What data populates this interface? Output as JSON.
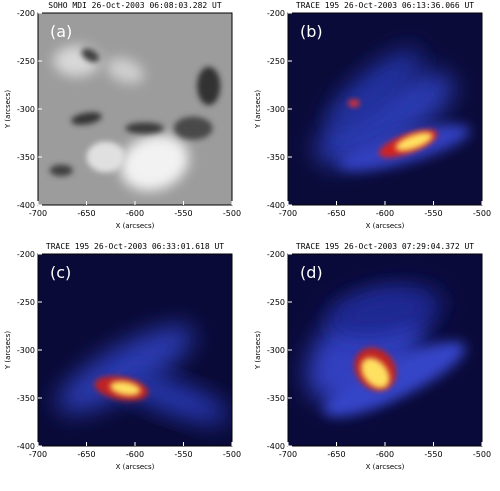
{
  "chart_data": [
    {
      "type": "image",
      "title": "SOHO MDI 26-Oct-2003 06:08:03.282 UT",
      "panel_label": "(a)",
      "xlabel": "X (arcsecs)",
      "ylabel": "Y (arcsecs)",
      "xlim": [
        -700,
        -500
      ],
      "ylim": [
        -400,
        -200
      ],
      "xticks": [
        -700,
        -650,
        -600,
        -550,
        -500
      ],
      "yticks": [
        -400,
        -350,
        -300,
        -250,
        -200
      ]
    },
    {
      "type": "image",
      "title": "TRACE 195 26-Oct-2003 06:13:36.066 UT",
      "panel_label": "(b)",
      "xlabel": "X (arcsecs)",
      "ylabel": "Y (arcsecs)",
      "xlim": [
        -700,
        -500
      ],
      "ylim": [
        -400,
        -200
      ],
      "xticks": [
        -700,
        -650,
        -600,
        -550,
        -500
      ],
      "yticks": [
        -400,
        -350,
        -300,
        -250,
        -200
      ]
    },
    {
      "type": "image",
      "title": "TRACE 195 26-Oct-2003 06:33:01.618 UT",
      "panel_label": "(c)",
      "xlabel": "X (arcsecs)",
      "ylabel": "Y (arcsecs)",
      "xlim": [
        -700,
        -500
      ],
      "ylim": [
        -400,
        -200
      ],
      "xticks": [
        -700,
        -650,
        -600,
        -550,
        -500
      ],
      "yticks": [
        -400,
        -350,
        -300,
        -250,
        -200
      ]
    },
    {
      "type": "image",
      "title": "TRACE 195 26-Oct-2003 07:29:04.372 UT",
      "panel_label": "(d)",
      "xlabel": "X (arcsecs)",
      "ylabel": "Y (arcsecs)",
      "xlim": [
        -700,
        -500
      ],
      "ylim": [
        -400,
        -200
      ],
      "xticks": [
        -700,
        -650,
        -600,
        -550,
        -500
      ],
      "yticks": [
        -400,
        -350,
        -300,
        -250,
        -200
      ]
    }
  ]
}
